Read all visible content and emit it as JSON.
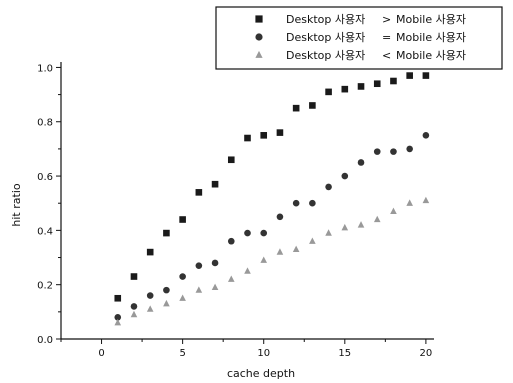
{
  "chart_data": {
    "type": "scatter",
    "title": "",
    "xlabel": "cache depth",
    "ylabel": "hit ratio",
    "xlim": [
      -2.5,
      20.5
    ],
    "ylim": [
      0.0,
      1.02
    ],
    "x_ticks": [
      "0",
      "5",
      "10",
      "15",
      "20"
    ],
    "y_ticks": [
      "0.0",
      "0.2",
      "0.4",
      "0.6",
      "0.8",
      "1.0"
    ],
    "legend_position": "top-right",
    "grid": false,
    "x": [
      1,
      2,
      3,
      4,
      5,
      6,
      7,
      8,
      9,
      10,
      11,
      12,
      13,
      14,
      15,
      16,
      17,
      18,
      19,
      20
    ],
    "series": [
      {
        "legend_desktop": "Desktop 사용자",
        "legend_relation": ">",
        "legend_mobile": "Mobile 사용자",
        "marker": "square",
        "color": "#1a1a1a",
        "values": [
          0.15,
          0.23,
          0.32,
          0.39,
          0.44,
          0.54,
          0.57,
          0.66,
          0.74,
          0.75,
          0.76,
          0.85,
          0.86,
          0.91,
          0.92,
          0.93,
          0.94,
          0.95,
          0.97,
          0.97
        ]
      },
      {
        "legend_desktop": "Desktop 사용자",
        "legend_relation": "=",
        "legend_mobile": "Mobile 사용자",
        "marker": "circle",
        "color": "#333333",
        "values": [
          0.08,
          0.12,
          0.16,
          0.18,
          0.23,
          0.27,
          0.28,
          0.36,
          0.39,
          0.39,
          0.45,
          0.5,
          0.5,
          0.56,
          0.6,
          0.65,
          0.69,
          0.69,
          0.7,
          0.75
        ]
      },
      {
        "legend_desktop": "Desktop 사용자",
        "legend_relation": "<",
        "legend_mobile": "Mobile 사용자",
        "marker": "triangle",
        "color": "#999999",
        "values": [
          0.06,
          0.09,
          0.11,
          0.13,
          0.15,
          0.18,
          0.19,
          0.22,
          0.25,
          0.29,
          0.32,
          0.33,
          0.36,
          0.39,
          0.41,
          0.42,
          0.44,
          0.47,
          0.5,
          0.51
        ]
      }
    ]
  }
}
